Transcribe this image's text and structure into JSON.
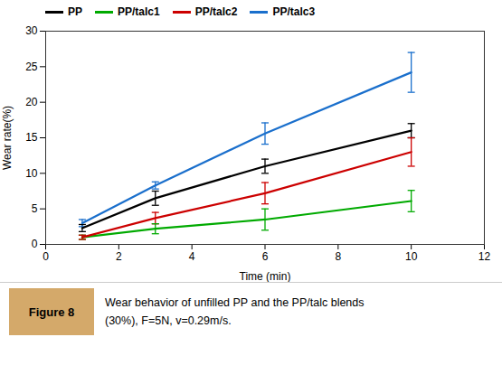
{
  "chart_data": {
    "type": "line",
    "xlabel": "Time (min)",
    "ylabel": "Wear rate(%)",
    "x": [
      1,
      3,
      6,
      10
    ],
    "series": [
      {
        "name": "PP",
        "color": "#000000",
        "values": [
          2.3,
          6.5,
          11.0,
          16.0
        ],
        "errors": [
          0.5,
          1.0,
          1.0,
          1.0
        ]
      },
      {
        "name": "PP/talc1",
        "color": "#00aa00",
        "values": [
          1.0,
          2.2,
          3.5,
          6.1
        ],
        "errors": [
          0.3,
          0.7,
          1.5,
          1.5
        ]
      },
      {
        "name": "PP/talc2",
        "color": "#cc0000",
        "values": [
          1.0,
          3.7,
          7.2,
          13.0
        ],
        "errors": [
          0.3,
          0.8,
          1.5,
          2.0
        ]
      },
      {
        "name": "PP/talc3",
        "color": "#1a6fcc",
        "values": [
          3.0,
          8.3,
          15.6,
          24.2
        ],
        "errors": [
          0.5,
          0.5,
          1.5,
          2.8
        ]
      }
    ],
    "xlim": [
      0,
      12
    ],
    "ylim": [
      0,
      30
    ],
    "xticks": [
      0,
      2,
      4,
      6,
      8,
      10,
      12
    ],
    "yticks": [
      0,
      5,
      10,
      15,
      20,
      25,
      30
    ],
    "grid": false,
    "legend": "upper left",
    "figure_label": "Figure 8",
    "figure_label_color": "#d4a96a",
    "caption": [
      "Wear behavior of unfilled PP and the PP/talc blends",
      "(30%), F=5N, v=0.29m/s."
    ]
  }
}
